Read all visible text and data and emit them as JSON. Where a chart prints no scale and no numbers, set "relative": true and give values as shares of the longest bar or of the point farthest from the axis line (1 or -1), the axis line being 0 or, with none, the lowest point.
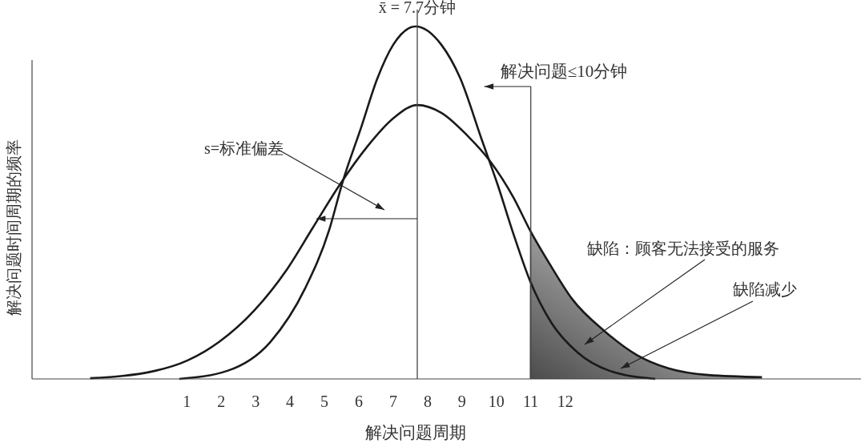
{
  "chart_data": {
    "type": "line",
    "xlabel": "解决问题周期",
    "ylabel": "解决问题时间周期的频率",
    "relative": true,
    "xlim": [
      -3.5,
      20.6
    ],
    "xticks": [
      1,
      2,
      3,
      4,
      5,
      6,
      7,
      8,
      9,
      10,
      11,
      12
    ],
    "series": [
      {
        "type": "area",
        "color": "#9a9a9a",
        "x": [
          10.97,
          11.6,
          12.2,
          13.14,
          14.08,
          15.0,
          16.16,
          17.72
        ],
        "values": [
          0.423,
          0.318,
          0.227,
          0.136,
          0.068,
          0.03,
          0.011,
          0.005
        ]
      },
      {
        "color": "#1a1a1a",
        "x": [
          0.78,
          2.18,
          3.43,
          4.44,
          5.14,
          5.53,
          6.07,
          6.53,
          7.0,
          7.65,
          8.4,
          8.94,
          9.57,
          10.04,
          10.5,
          10.97,
          11.6,
          12.36,
          13.29,
          14.62
        ],
        "values": [
          0,
          0.023,
          0.105,
          0.257,
          0.423,
          0.559,
          0.714,
          0.85,
          0.948,
          1.0,
          0.948,
          0.855,
          0.68,
          0.55,
          0.41,
          0.28,
          0.159,
          0.075,
          0.023,
          0
        ]
      },
      {
        "color": "#1a1a1a",
        "x": [
          -1.81,
          0.08,
          1.01,
          1.94,
          2.97,
          3.9,
          4.67,
          5.44,
          6.23,
          7.0,
          7.7,
          8.4,
          9.17,
          9.8,
          10.5,
          10.97,
          11.6,
          12.2,
          13.14,
          14.08,
          15.0,
          16.16,
          17.72
        ],
        "values": [
          0.002,
          0.023,
          0.052,
          0.105,
          0.195,
          0.309,
          0.43,
          0.55,
          0.657,
          0.739,
          0.777,
          0.755,
          0.689,
          0.62,
          0.514,
          0.423,
          0.318,
          0.227,
          0.136,
          0.068,
          0.03,
          0.011,
          0.005
        ]
      }
    ],
    "ref_lines": [
      {
        "axis": "x",
        "value": 7.7,
        "label": "x̄ = 7.7分钟",
        "color": "#444444"
      },
      {
        "axis": "x",
        "value": 11,
        "label": "解决问题≤10分钟",
        "color": "#444444"
      }
    ],
    "annotations": [
      "s=标准偏差",
      "缺陷：顾客无法接受的服务",
      "缺陷减少"
    ]
  }
}
